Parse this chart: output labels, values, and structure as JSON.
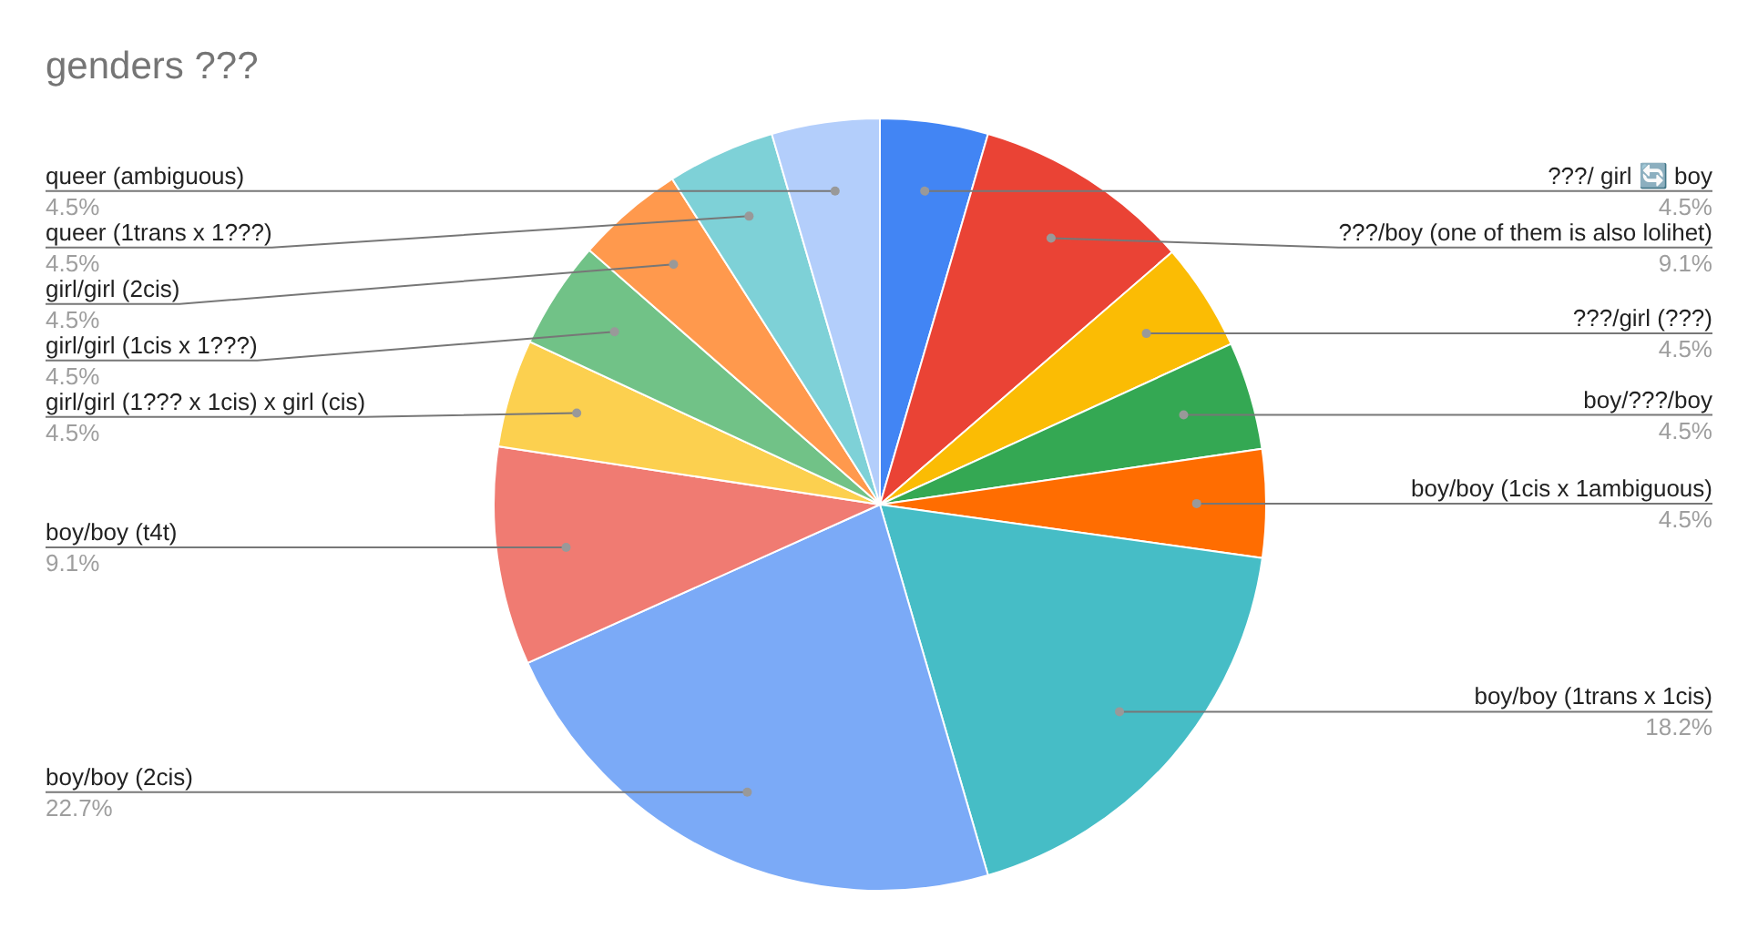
{
  "chart_data": {
    "type": "pie",
    "title": "genders ???",
    "categories": [
      "???/ girl 🔄 boy",
      "???/boy (one of them is also lolihet)",
      "???/girl (???)",
      "boy/???/boy",
      "boy/boy (1cis x 1ambiguous)",
      "boy/boy (1trans x 1cis)",
      "boy/boy (2cis)",
      "boy/boy (t4t)",
      "girl/girl (1??? x 1cis) x girl (cis)",
      "girl/girl (1cis x 1???)",
      "girl/girl (2cis)",
      "queer (1trans x 1???)",
      "queer (ambiguous)"
    ],
    "values": [
      4.5,
      9.1,
      4.5,
      4.5,
      4.5,
      18.2,
      22.7,
      9.1,
      4.5,
      4.5,
      4.5,
      4.5,
      4.5
    ],
    "colors": [
      "#4285f4",
      "#ea4335",
      "#fbbc04",
      "#34a853",
      "#ff6d01",
      "#46bdc6",
      "#7baaf7",
      "#f07b72",
      "#fcd04f",
      "#71c287",
      "#ff994d",
      "#7ed1d7",
      "#b3cefb"
    ],
    "value_labels": [
      "4.5%",
      "9.1%",
      "4.5%",
      "4.5%",
      "4.5%",
      "18.2%",
      "22.7%",
      "9.1%",
      "4.5%",
      "4.5%",
      "4.5%",
      "4.5%",
      "4.5%"
    ]
  }
}
